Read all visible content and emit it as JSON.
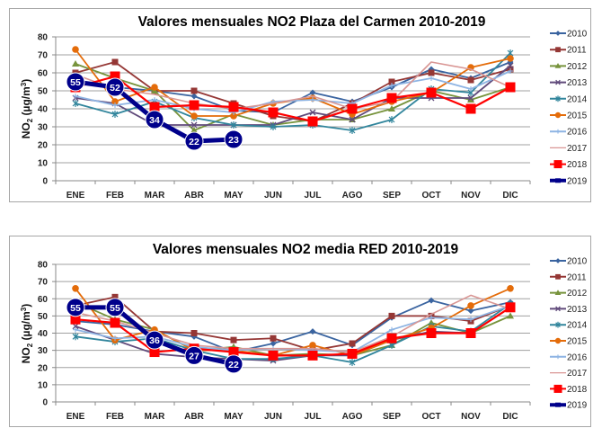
{
  "chart_data": [
    {
      "type": "line",
      "title": "Valores mensuales NO2 Plaza del Carmen 2010-2019",
      "xlabel": "",
      "ylabel": "NO2 (µg/m3)",
      "ylabel_main": "NO",
      "ylabel_sub": "2",
      "ylabel_rest": " (µg/m",
      "ylabel_sup": "3",
      "ylabel_end": ")",
      "ylim": [
        0,
        80
      ],
      "yticks": [
        0,
        10,
        20,
        30,
        40,
        50,
        60,
        70,
        80
      ],
      "grid": true,
      "legend": "right",
      "categories": [
        "ENE",
        "FEB",
        "MAR",
        "ABR",
        "MAY",
        "JUN",
        "JUL",
        "AGO",
        "SEP",
        "OCT",
        "NOV",
        "DIC"
      ],
      "series": [
        {
          "name": "2010",
          "color": "#3a64a0",
          "marker": "diamond",
          "values": [
            55,
            52,
            50,
            47,
            39,
            38,
            49,
            44,
            52,
            62,
            57,
            66
          ]
        },
        {
          "name": "2011",
          "color": "#953735",
          "marker": "square",
          "values": [
            60,
            66,
            50,
            50,
            43,
            36,
            33,
            43,
            55,
            60,
            56,
            62
          ]
        },
        {
          "name": "2012",
          "color": "#77933c",
          "marker": "triangle",
          "values": [
            65,
            57,
            50,
            28,
            37,
            31,
            34,
            34,
            40,
            50,
            45,
            52
          ]
        },
        {
          "name": "2013",
          "color": "#604a7b",
          "marker": "x",
          "values": [
            46,
            43,
            31,
            31,
            31,
            31,
            38,
            34,
            46,
            46,
            46,
            64
          ]
        },
        {
          "name": "2014",
          "color": "#31859c",
          "marker": "star",
          "values": [
            43,
            37,
            44,
            35,
            31,
            30,
            31,
            28,
            34,
            51,
            49,
            71
          ]
        },
        {
          "name": "2015",
          "color": "#e46c0a",
          "marker": "circle",
          "values": [
            73,
            44,
            52,
            36,
            36,
            43,
            46,
            37,
            44,
            49,
            63,
            68
          ]
        },
        {
          "name": "2016",
          "color": "#8eb4e3",
          "marker": "plus",
          "values": [
            47,
            42,
            45,
            40,
            38,
            44,
            45,
            43,
            53,
            57,
            51,
            61
          ]
        },
        {
          "name": "2017",
          "color": "#d99694",
          "marker": "none",
          "values": [
            59,
            51,
            48,
            43,
            40,
            43,
            47,
            40,
            44,
            66,
            62,
            52
          ]
        },
        {
          "name": "2018",
          "color": "#ff0000",
          "marker": "bigsquare",
          "values": [
            52,
            58,
            41,
            42,
            41,
            38,
            33,
            40,
            46,
            49,
            40,
            52
          ]
        },
        {
          "name": "2019",
          "color": "#00008b",
          "marker": "label",
          "values": [
            55,
            52,
            34,
            22,
            23,
            null,
            null,
            null,
            null,
            null,
            null,
            null
          ]
        }
      ]
    },
    {
      "type": "line",
      "title": "Valores mensuales NO2 media RED 2010-2019",
      "xlabel": "",
      "ylabel": "NO2 (µg/m3)",
      "ylabel_main": "NO",
      "ylabel_sub": "2",
      "ylabel_rest": " (µg/m",
      "ylabel_sup": "3",
      "ylabel_end": ")",
      "ylim": [
        0,
        80
      ],
      "yticks": [
        0,
        10,
        20,
        30,
        40,
        50,
        60,
        70,
        80
      ],
      "grid": true,
      "legend": "right",
      "categories": [
        "ENE",
        "FEB",
        "MAR",
        "ABR",
        "MAY",
        "JUN",
        "JUL",
        "AGO",
        "SEP",
        "OCT",
        "NOV",
        "DIC"
      ],
      "series": [
        {
          "name": "2010",
          "color": "#3a64a0",
          "marker": "diamond",
          "values": [
            47,
            45,
            41,
            38,
            29,
            34,
            41,
            33,
            49,
            59,
            53,
            58
          ]
        },
        {
          "name": "2011",
          "color": "#953735",
          "marker": "square",
          "values": [
            56,
            61,
            41,
            40,
            36,
            37,
            30,
            34,
            50,
            50,
            47,
            56
          ]
        },
        {
          "name": "2012",
          "color": "#77933c",
          "marker": "triangle",
          "values": [
            58,
            48,
            42,
            30,
            32,
            27,
            28,
            27,
            33,
            46,
            40,
            50
          ]
        },
        {
          "name": "2013",
          "color": "#604a7b",
          "marker": "x",
          "values": [
            44,
            36,
            28,
            26,
            25,
            24,
            27,
            27,
            36,
            41,
            40,
            55
          ]
        },
        {
          "name": "2014",
          "color": "#31859c",
          "marker": "star",
          "values": [
            38,
            35,
            37,
            30,
            25,
            25,
            27,
            23,
            33,
            44,
            41,
            57
          ]
        },
        {
          "name": "2015",
          "color": "#e46c0a",
          "marker": "circle",
          "values": [
            66,
            36,
            42,
            30,
            30,
            27,
            33,
            27,
            36,
            43,
            56,
            66
          ]
        },
        {
          "name": "2016",
          "color": "#8eb4e3",
          "marker": "plus",
          "values": [
            42,
            37,
            38,
            32,
            30,
            31,
            30,
            29,
            42,
            49,
            48,
            56
          ]
        },
        {
          "name": "2017",
          "color": "#d99694",
          "marker": "none",
          "values": [
            52,
            47,
            40,
            33,
            31,
            31,
            31,
            29,
            38,
            51,
            62,
            54
          ]
        },
        {
          "name": "2018",
          "color": "#ff0000",
          "marker": "bigsquare",
          "values": [
            48,
            46,
            29,
            31,
            29,
            27,
            27,
            28,
            37,
            40,
            40,
            55
          ]
        },
        {
          "name": "2019",
          "color": "#00008b",
          "marker": "label",
          "values": [
            55,
            55,
            36,
            27,
            22,
            null,
            null,
            null,
            null,
            null,
            null,
            null
          ]
        }
      ]
    }
  ]
}
